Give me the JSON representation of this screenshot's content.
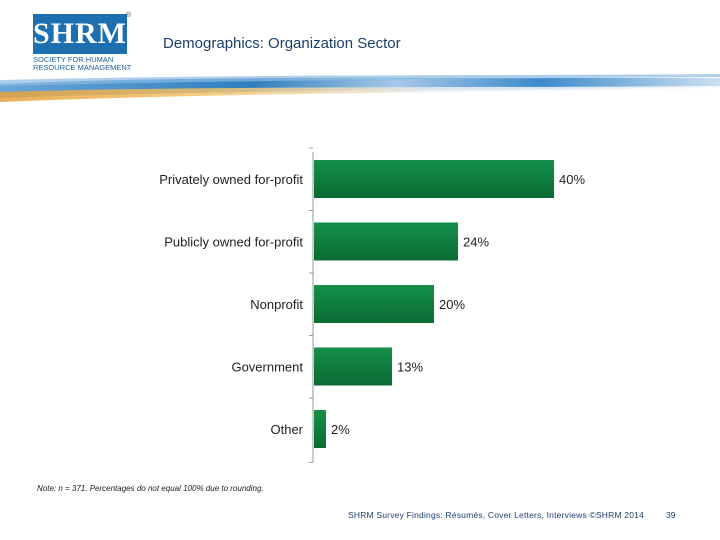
{
  "logo": {
    "text": "SHRM",
    "subtitle": "Society for Human Resource Management",
    "reg": "®"
  },
  "slide": {
    "title": "Demographics: Organization Sector"
  },
  "chart_data": {
    "type": "bar",
    "orientation": "horizontal",
    "categories": [
      "Privately owned for-profit",
      "Publicly owned for-profit",
      "Nonprofit",
      "Government",
      "Other"
    ],
    "values": [
      40,
      24,
      20,
      13,
      2
    ],
    "value_labels": [
      "40%",
      "24%",
      "20%",
      "13%",
      "2%"
    ],
    "xlim": [
      0,
      40
    ],
    "bar_color": "#14904a",
    "bar_color_dark": "#0b6b34",
    "title": "",
    "xlabel": "",
    "ylabel": ""
  },
  "note": "Note: n = 371. Percentages do not equal 100% due to rounding.",
  "footer": {
    "text": "SHRM Survey Findings: Résumés, Cover Letters, Interviews ©SHRM 2014",
    "page": "39"
  }
}
